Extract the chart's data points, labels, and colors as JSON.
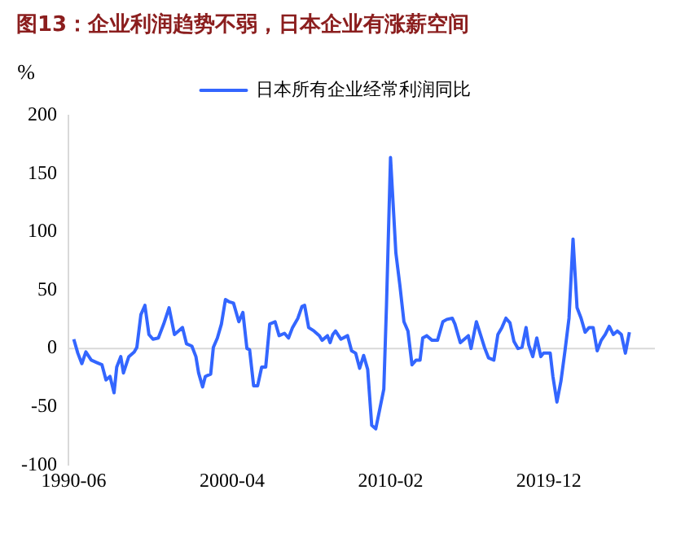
{
  "chart_data": {
    "type": "line",
    "title": "图13：企业利润趋势不弱，日本企业有涨薪空间",
    "ylabel": "%",
    "legend": "top",
    "grid": false,
    "marker": "none",
    "line_style": "solid",
    "ylim": [
      -100,
      200
    ],
    "yticks": [
      -100,
      -50,
      0,
      50,
      100,
      150,
      200
    ],
    "xlim": [
      "1990-02",
      "2026-07"
    ],
    "xticks": [
      "1990-06",
      "2000-04",
      "2010-02",
      "2019-12"
    ],
    "ref_lines": [
      {
        "axis": "y",
        "value": 0,
        "color": "#d9d9d9"
      }
    ],
    "series": [
      {
        "name": "日本所有企业经常利润同比",
        "color": "#3366ff",
        "x": [
          "1990-06",
          "1990-09",
          "1990-12",
          "1991-03",
          "1991-07",
          "1991-11",
          "1992-03",
          "1992-06",
          "1992-09",
          "1992-12",
          "1993-02",
          "1993-05",
          "1993-07",
          "1993-11",
          "1994-03",
          "1994-05",
          "1994-08",
          "1994-11",
          "1995-02",
          "1995-05",
          "1995-09",
          "1996-01",
          "1996-05",
          "1996-09",
          "1996-12",
          "1997-03",
          "1997-06",
          "1997-10",
          "1998-01",
          "1998-03",
          "1998-06",
          "1998-08",
          "1998-12",
          "1999-02",
          "1999-05",
          "1999-08",
          "1999-11",
          "2000-02",
          "2000-05",
          "2000-09",
          "2000-12",
          "2001-03",
          "2001-05",
          "2001-08",
          "2001-11",
          "2002-02",
          "2002-05",
          "2002-08",
          "2002-12",
          "2003-03",
          "2003-07",
          "2003-10",
          "2004-01",
          "2004-05",
          "2004-08",
          "2004-10",
          "2005-01",
          "2005-05",
          "2005-09",
          "2005-11",
          "2006-03",
          "2006-05",
          "2006-07",
          "2006-09",
          "2007-01",
          "2007-06",
          "2007-09",
          "2007-12",
          "2008-03",
          "2008-06",
          "2008-09",
          "2008-12",
          "2009-03",
          "2009-06",
          "2009-09",
          "2009-11",
          "2010-02",
          "2010-06",
          "2010-09",
          "2010-12",
          "2011-03",
          "2011-06",
          "2011-09",
          "2011-12",
          "2012-02",
          "2012-05",
          "2012-09",
          "2013-01",
          "2013-05",
          "2013-08",
          "2013-12",
          "2014-02",
          "2014-06",
          "2014-09",
          "2014-12",
          "2015-02",
          "2015-06",
          "2015-09",
          "2015-12",
          "2016-03",
          "2016-07",
          "2016-10",
          "2017-01",
          "2017-04",
          "2017-07",
          "2017-10",
          "2018-01",
          "2018-04",
          "2018-07",
          "2018-09",
          "2018-12",
          "2019-03",
          "2019-06",
          "2019-08",
          "2020-01",
          "2020-03",
          "2020-06",
          "2020-09",
          "2020-12",
          "2021-03",
          "2021-06",
          "2021-09",
          "2021-12",
          "2022-03",
          "2022-06",
          "2022-09",
          "2022-12",
          "2023-03",
          "2023-06",
          "2023-09",
          "2023-12",
          "2024-03",
          "2024-06",
          "2024-09",
          "2024-12"
        ],
        "values": [
          8,
          -4,
          -13,
          -3,
          -10,
          -12,
          -14,
          -27,
          -24,
          -38,
          -16,
          -7,
          -21,
          -7,
          -3,
          1,
          29,
          37,
          12,
          8,
          9,
          21,
          35,
          12,
          15,
          18,
          4,
          2,
          -7,
          -21,
          -33,
          -24,
          -22,
          1,
          9,
          21,
          42,
          40,
          39,
          23,
          31,
          0,
          -1,
          -32,
          -32,
          -16,
          -16,
          21,
          23,
          11,
          13,
          9,
          18,
          26,
          36,
          37,
          18,
          15,
          11,
          7,
          11,
          5,
          12,
          15,
          8,
          11,
          -2,
          -4,
          -17,
          -6,
          -18,
          -66,
          -69,
          -52,
          -35,
          37,
          164,
          82,
          54,
          23,
          15,
          -14,
          -10,
          -10,
          9,
          11,
          7,
          7,
          23,
          25,
          26,
          21,
          5,
          8,
          11,
          0,
          23,
          12,
          1,
          -8,
          -10,
          12,
          18,
          26,
          22,
          6,
          0,
          1,
          18,
          3,
          -7,
          9,
          -7,
          -4,
          -4,
          -24,
          -46,
          -28,
          -2,
          26,
          94,
          35,
          26,
          14,
          18,
          18,
          -2,
          7,
          12,
          19,
          12,
          15,
          12,
          -4,
          14
        ]
      }
    ]
  }
}
